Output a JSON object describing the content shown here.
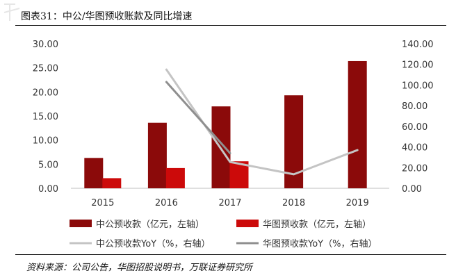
{
  "figure_title": "图表31：中公/华图预收账款及同比增速",
  "source": "资料来源：公司公告，华图招股说明书，万联证券研究所",
  "colors": {
    "bar1": "#8b0a0a",
    "bar2": "#cc0a0a",
    "line1": "#c4c4c4",
    "line2": "#8f8f8f",
    "axis": "#bfbfbf",
    "text": "#333333"
  },
  "chart_data": {
    "type": "bar",
    "categories": [
      "2015",
      "2016",
      "2017",
      "2018",
      "2019"
    ],
    "left_axis": {
      "min": 0,
      "max": 30,
      "step": 5,
      "tick_labels": [
        "0.00",
        "5.00",
        "10.00",
        "15.00",
        "20.00",
        "25.00",
        "30.00"
      ]
    },
    "right_axis": {
      "min": 0,
      "max": 140,
      "step": 20,
      "tick_labels": [
        "0.00",
        "20.00",
        "40.00",
        "60.00",
        "80.00",
        "100.00",
        "120.00",
        "140.00"
      ]
    },
    "grid": false,
    "legend_position": "bottom",
    "series": [
      {
        "name": "中公预收款（亿元，左轴）",
        "type": "bar",
        "axis": "left",
        "values": [
          6.3,
          13.6,
          17.0,
          19.3,
          26.4
        ]
      },
      {
        "name": "华图预收款（亿元，左轴）",
        "type": "bar",
        "axis": "left",
        "values": [
          2.1,
          4.2,
          5.6,
          null,
          null
        ]
      },
      {
        "name": "中公预收款YoY（%，右轴）",
        "type": "line",
        "axis": "right",
        "values": [
          null,
          115.0,
          25.5,
          13.5,
          37.0
        ]
      },
      {
        "name": "华图预收款YoY（%，右轴）",
        "type": "line",
        "axis": "right",
        "values": [
          null,
          103.0,
          34.0,
          null,
          null
        ]
      }
    ]
  }
}
